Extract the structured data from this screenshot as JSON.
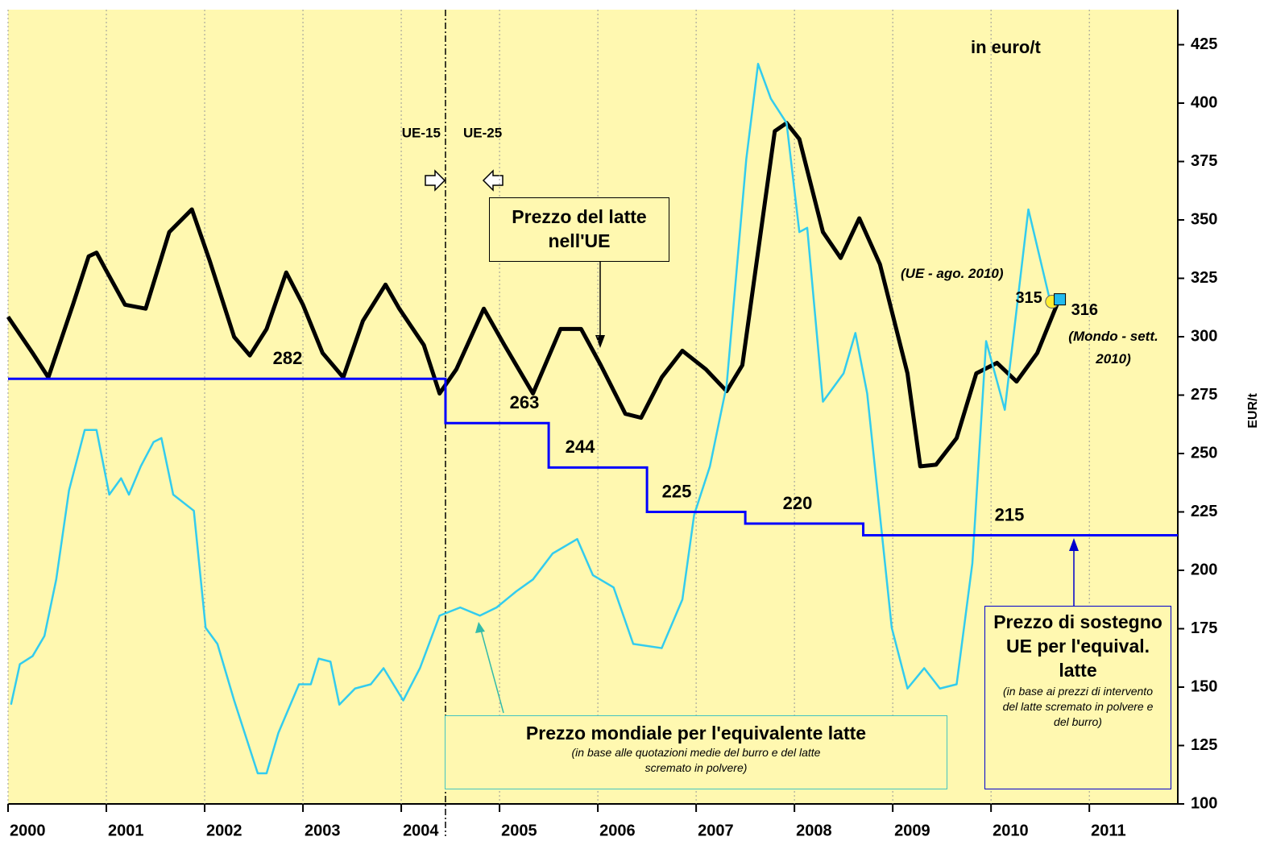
{
  "chart_data": {
    "type": "line",
    "unit_label": "in euro/t",
    "y_axis_label": "EUR/t",
    "xlim": [
      2000,
      2011.9
    ],
    "xticks": [
      2000,
      2001,
      2002,
      2003,
      2004,
      2005,
      2006,
      2007,
      2008,
      2009,
      2010,
      2011
    ],
    "ylim": [
      100,
      440
    ],
    "yticks": [
      100,
      125,
      150,
      175,
      200,
      225,
      250,
      275,
      300,
      325,
      350,
      375,
      400,
      425
    ],
    "grid": true,
    "divider": {
      "x": 2004.45,
      "left_label": "UE-15",
      "right_label": "UE-25"
    },
    "series": [
      {
        "name": "Prezzo del latte nell'UE",
        "color": "#000000",
        "x": [
          2000.0,
          2000.25,
          2000.41,
          2000.66,
          2000.82,
          2000.9,
          2000.99,
          2001.19,
          2001.4,
          2001.64,
          2001.87,
          2002.05,
          2002.3,
          2002.46,
          2002.63,
          2002.83,
          2003.0,
          2003.2,
          2003.41,
          2003.61,
          2003.84,
          2003.98,
          2004.23,
          2004.39,
          2004.56,
          2004.84,
          2005.05,
          2005.34,
          2005.62,
          2005.83,
          2006.03,
          2006.28,
          2006.44,
          2006.65,
          2006.86,
          2007.1,
          2007.31,
          2007.47,
          2007.8,
          2007.92,
          2008.05,
          2008.29,
          2008.47,
          2008.66,
          2008.87,
          2009.15,
          2009.28,
          2009.44,
          2009.65,
          2009.85,
          2010.06,
          2010.26,
          2010.47,
          2010.67
        ],
        "values": [
          308.5,
          293,
          282.6,
          313.7,
          334.4,
          336,
          329,
          313.7,
          312,
          344.8,
          354.5,
          332.7,
          299.9,
          292,
          303.3,
          327.5,
          313.7,
          293,
          282.6,
          306.8,
          322.3,
          312,
          296.4,
          275.7,
          286,
          312,
          296.4,
          275.7,
          303.3,
          303.3,
          287.8,
          267,
          265.3,
          282.6,
          294,
          286,
          276.7,
          287.8,
          388,
          391.5,
          384.6,
          344.8,
          333.7,
          350.7,
          331,
          284.3,
          244.5,
          245.2,
          256.6,
          284.3,
          288.8,
          280.8,
          293,
          313.7
        ]
      },
      {
        "name": "Prezzo mondiale per l'equivalente latte",
        "note": "(in base alle quotazioni medie del burro e del latte scremato in polvere)",
        "color": "#33ccee",
        "x": [
          2000.03,
          2000.12,
          2000.25,
          2000.37,
          2000.49,
          2000.62,
          2000.78,
          2000.9,
          2001.03,
          2001.15,
          2001.23,
          2001.35,
          2001.48,
          2001.56,
          2001.68,
          2001.89,
          2002.01,
          2002.13,
          2002.3,
          2002.54,
          2002.63,
          2002.75,
          2002.96,
          2003.08,
          2003.16,
          2003.28,
          2003.37,
          2003.53,
          2003.69,
          2003.82,
          2004.02,
          2004.19,
          2004.39,
          2004.6,
          2004.8,
          2004.97,
          2005.17,
          2005.34,
          2005.54,
          2005.79,
          2005.95,
          2006.16,
          2006.36,
          2006.65,
          2006.86,
          2006.98,
          2007.14,
          2007.31,
          2007.51,
          2007.63,
          2007.76,
          2007.92,
          2008.05,
          2008.13,
          2008.29,
          2008.5,
          2008.62,
          2008.74,
          2008.99,
          2009.15,
          2009.32,
          2009.48,
          2009.65,
          2009.81,
          2009.95,
          2010.14,
          2010.38,
          2010.59
        ],
        "values": [
          142.5,
          159.8,
          163.3,
          171.9,
          196.1,
          234.2,
          260.1,
          260.1,
          232.4,
          239.4,
          232.4,
          244.5,
          254.9,
          256.6,
          232.4,
          225.5,
          175.4,
          168.5,
          144.3,
          113.1,
          113.1,
          130.4,
          151.2,
          151.2,
          162.2,
          160.9,
          142.5,
          149.4,
          151.2,
          158.1,
          144.3,
          158.1,
          180.6,
          184.1,
          180.6,
          184.1,
          191,
          196.1,
          207.2,
          213.4,
          197.9,
          192.7,
          168.5,
          166.7,
          187.5,
          223.8,
          244.5,
          279.1,
          376,
          416.8,
          401.9,
          391.5,
          344.8,
          346.6,
          272.2,
          284.3,
          301.6,
          275.7,
          175.4,
          149.4,
          158.1,
          149.4,
          151.2,
          203,
          298.1,
          268.7,
          354.5,
          317.2
        ]
      },
      {
        "name": "Prezzo di sostegno UE per l'equival. latte",
        "note": "(in base ai prezzi di intervento del latte scremato in polvere e del burro)",
        "color": "#0000ff",
        "step": true,
        "x": [
          2000,
          2004.45,
          2005.5,
          2006.5,
          2007.5,
          2008.7
        ],
        "values": [
          282,
          263,
          244,
          225,
          220,
          215
        ]
      }
    ],
    "markers": [
      {
        "label": "(UE - ago. 2010)",
        "x": 2010.62,
        "value": 315,
        "color": "#ffee33",
        "shape": "circle"
      },
      {
        "label": "(Mondo - sett. 2010)",
        "x": 2010.7,
        "value": 316,
        "color": "#22bbee",
        "shape": "square"
      }
    ]
  }
}
